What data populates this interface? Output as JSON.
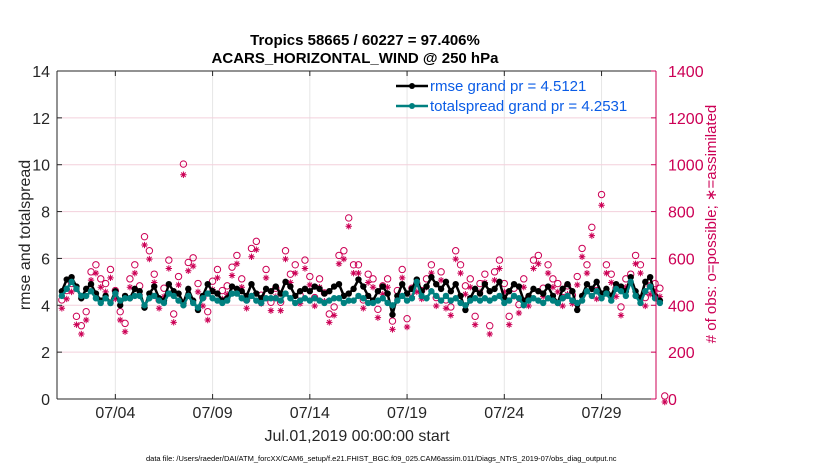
{
  "chart_data": {
    "type": "line",
    "title": [
      "Tropics 58665 / 60227 = 97.406%",
      "ACARS_HORIZONTAL_WIND @ 250 hPa"
    ],
    "xlabel": "Jul.01,2019 00:00:00 start",
    "ylabel": "rmse and totalspread",
    "ylabel_right": "# of obs: o=possible; ∗=assimilated",
    "footnote": "data file: /Users/raeder/DAI/ATM_forcXX/CAM6_setup/f.e21.FHIST_BGC.f09_025.CAM6assim.011/Diags_NTrS_2019-07/obs_diag_output.nc",
    "xlim": [
      0,
      30.8
    ],
    "x_unit": "days since Jul.01,2019 00:00:00",
    "x_ticks": [
      {
        "value": 3,
        "label": "07/04"
      },
      {
        "value": 8,
        "label": "07/09"
      },
      {
        "value": 13,
        "label": "07/14"
      },
      {
        "value": 18,
        "label": "07/19"
      },
      {
        "value": 23,
        "label": "07/24"
      },
      {
        "value": 28,
        "label": "07/29"
      }
    ],
    "ylim": [
      0,
      14
    ],
    "y_ticks": [
      0,
      2,
      4,
      6,
      8,
      10,
      12,
      14
    ],
    "ylim_right": [
      0,
      1400
    ],
    "y_ticks_right": [
      0,
      200,
      400,
      600,
      800,
      1000,
      1200,
      1400
    ],
    "grid": true,
    "legend_position": "top-right",
    "colors": {
      "rmse": "#000000",
      "totalspread": "#008080",
      "obs": "#cc0055",
      "legend_text": "#0a5ce6",
      "right_axis": "#cc0055",
      "grid": "#e6e6e6",
      "grid_right": "#f3d0dc"
    },
    "series": [
      {
        "name": "rmse grand pr = 4.5121",
        "axis": "left",
        "x_start": 0.25,
        "x_step": 0.25,
        "values": [
          4.6,
          5.1,
          5.2,
          4.8,
          4.3,
          4.7,
          4.9,
          4.5,
          4.2,
          4.4,
          4.1,
          4.6,
          4.0,
          4.4,
          4.3,
          4.7,
          4.6,
          3.9,
          4.5,
          4.8,
          4.3,
          4.2,
          4.9,
          4.6,
          4.5,
          4.1,
          4.7,
          4.2,
          3.8,
          4.4,
          4.9,
          4.6,
          4.5,
          4.2,
          4.3,
          4.8,
          4.7,
          4.6,
          4.4,
          4.9,
          4.5,
          4.3,
          4.7,
          4.6,
          4.8,
          4.5,
          5.0,
          4.8,
          4.4,
          4.6,
          4.7,
          4.6,
          4.8,
          4.7,
          4.5,
          4.6,
          4.8,
          4.9,
          4.4,
          4.5,
          4.7,
          5.1,
          4.8,
          4.4,
          4.2,
          4.6,
          4.8,
          4.5,
          3.6,
          4.4,
          4.9,
          4.5,
          4.7,
          5.1,
          4.6,
          4.8,
          5.2,
          4.9,
          4.7,
          5.0,
          4.6,
          4.9,
          4.4,
          3.8,
          4.3,
          4.7,
          4.5,
          4.9,
          4.6,
          4.7,
          5.0,
          4.3,
          4.6,
          4.9,
          4.8,
          4.2,
          4.4,
          4.7,
          4.6,
          4.5,
          4.8,
          4.4,
          4.1,
          4.7,
          4.9,
          4.6,
          3.8,
          4.4,
          4.9,
          4.7,
          5.0,
          4.5,
          4.7,
          4.4,
          4.9,
          4.8,
          4.6,
          5.2,
          4.6,
          4.3,
          5.0,
          5.2,
          4.4,
          4.2
        ],
        "marker": "filled-circle"
      },
      {
        "name": "totalspread grand pr = 4.2531",
        "axis": "left",
        "x_start": 0.25,
        "x_step": 0.25,
        "values": [
          4.4,
          4.7,
          5.0,
          4.7,
          4.4,
          4.4,
          4.6,
          4.3,
          4.1,
          4.3,
          4.1,
          4.5,
          4.2,
          4.3,
          4.3,
          4.4,
          4.4,
          4.0,
          4.3,
          4.4,
          4.2,
          4.1,
          4.5,
          4.4,
          4.2,
          4.0,
          4.4,
          4.1,
          3.9,
          4.3,
          4.5,
          4.3,
          4.2,
          4.1,
          4.2,
          4.5,
          4.5,
          4.3,
          4.2,
          4.4,
          4.2,
          4.1,
          4.3,
          4.3,
          4.3,
          4.2,
          4.5,
          4.3,
          4.1,
          4.2,
          4.3,
          4.2,
          4.3,
          4.2,
          4.1,
          4.2,
          4.3,
          4.3,
          4.1,
          4.2,
          4.2,
          4.4,
          4.3,
          4.1,
          4.1,
          4.2,
          4.3,
          4.1,
          4.0,
          4.2,
          4.4,
          4.2,
          4.3,
          5.0,
          4.4,
          4.3,
          4.6,
          4.4,
          4.2,
          4.4,
          4.2,
          4.3,
          4.1,
          4.0,
          4.2,
          4.3,
          4.2,
          4.3,
          4.2,
          4.3,
          4.4,
          4.1,
          4.2,
          4.4,
          4.3,
          4.0,
          4.2,
          4.3,
          4.2,
          4.1,
          4.3,
          4.2,
          4.1,
          4.3,
          4.4,
          4.2,
          4.1,
          4.2,
          4.6,
          4.4,
          4.6,
          4.3,
          4.5,
          4.2,
          4.7,
          4.6,
          4.4,
          5.0,
          4.4,
          4.1,
          4.6,
          4.8,
          4.3,
          4.1
        ],
        "marker": "filled-circle"
      },
      {
        "name": "obs possible",
        "axis": "right",
        "x_start": 0.25,
        "x_step": 0.25,
        "values": [
          410,
          450,
          480,
          340,
          300,
          360,
          530,
          560,
          500,
          480,
          540,
          450,
          360,
          310,
          500,
          560,
          470,
          680,
          620,
          520,
          410,
          460,
          580,
          350,
          510,
          990,
          570,
          590,
          480,
          420,
          360,
          490,
          540,
          450,
          470,
          550,
          600,
          500,
          410,
          630,
          660,
          430,
          540,
          400,
          460,
          400,
          620,
          520,
          560,
          430,
          580,
          510,
          420,
          500,
          440,
          350,
          380,
          600,
          620,
          760,
          560,
          560,
          410,
          520,
          500,
          370,
          470,
          500,
          320,
          450,
          540,
          330,
          460,
          480,
          450,
          500,
          560,
          420,
          530,
          410,
          380,
          620,
          560,
          470,
          500,
          340,
          480,
          520,
          300,
          530,
          580,
          480,
          340,
          460,
          390,
          500,
          420,
          580,
          600,
          460,
          560,
          500,
          480,
          420,
          470,
          430,
          510,
          630,
          560,
          720,
          450,
          860,
          560,
          520,
          460,
          380,
          500,
          520,
          600,
          560,
          420,
          470,
          480,
          460,
          0
        ],
        "marker": "open-circle"
      },
      {
        "name": "obs assimilated",
        "axis": "right",
        "x_start": 0.25,
        "x_step": 0.25,
        "values": [
          400,
          440,
          470,
          330,
          290,
          350,
          520,
          550,
          490,
          470,
          530,
          440,
          350,
          300,
          490,
          550,
          460,
          670,
          610,
          510,
          400,
          450,
          570,
          340,
          500,
          970,
          560,
          580,
          470,
          410,
          350,
          480,
          530,
          440,
          460,
          540,
          590,
          490,
          400,
          620,
          650,
          420,
          530,
          390,
          450,
          390,
          610,
          510,
          550,
          420,
          570,
          500,
          410,
          490,
          430,
          340,
          370,
          590,
          610,
          750,
          550,
          550,
          400,
          510,
          490,
          360,
          460,
          490,
          310,
          440,
          530,
          320,
          450,
          470,
          440,
          490,
          550,
          410,
          520,
          400,
          370,
          610,
          550,
          460,
          490,
          330,
          470,
          510,
          290,
          520,
          570,
          470,
          330,
          450,
          380,
          490,
          410,
          570,
          590,
          450,
          550,
          490,
          470,
          410,
          460,
          420,
          500,
          620,
          550,
          710,
          440,
          840,
          550,
          510,
          450,
          370,
          490,
          510,
          590,
          550,
          410,
          460,
          470,
          450,
          0
        ],
        "marker": "asterisk"
      }
    ]
  }
}
